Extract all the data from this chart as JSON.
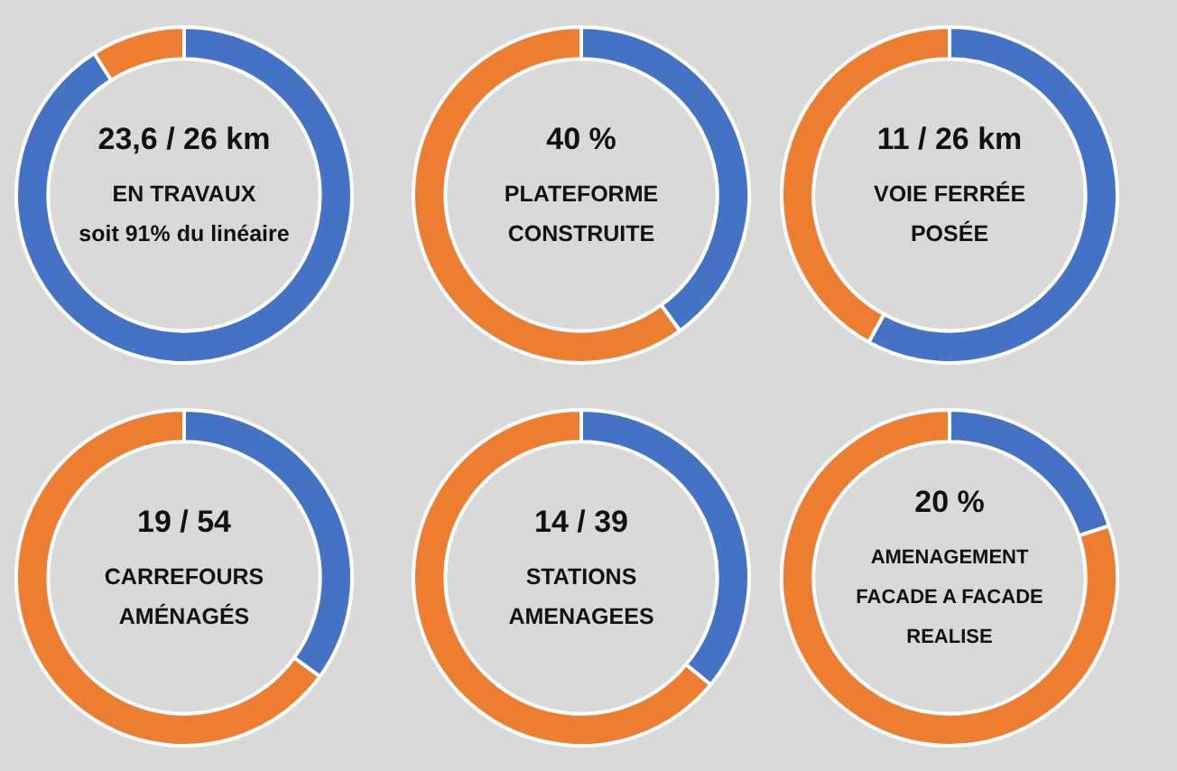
{
  "chart_data": [
    {
      "type": "donut",
      "categories": [
        null,
        null
      ],
      "values": [
        91,
        9
      ],
      "colors": [
        "#4472c4",
        "#ed7d31"
      ],
      "annotations": [
        "23,6 / 26 km",
        "EN TRAVAUX",
        "soit 91% du linéaire"
      ]
    },
    {
      "type": "donut",
      "categories": [
        null,
        null
      ],
      "values": [
        40,
        60
      ],
      "colors": [
        "#4472c4",
        "#ed7d31"
      ],
      "annotations": [
        "40 %",
        "PLATEFORME",
        "CONSTRUITE"
      ]
    },
    {
      "type": "donut",
      "categories": [
        null,
        null
      ],
      "values": [
        58,
        42
      ],
      "colors": [
        "#4472c4",
        "#ed7d31"
      ],
      "annotations": [
        "11 / 26 km",
        "VOIE FERRÉE",
        "POSÉE"
      ]
    },
    {
      "type": "donut",
      "categories": [
        null,
        null
      ],
      "values": [
        35,
        65
      ],
      "colors": [
        "#4472c4",
        "#ed7d31"
      ],
      "annotations": [
        "19 / 54",
        "CARREFOURS",
        "AMÉNAGÉS"
      ]
    },
    {
      "type": "donut",
      "categories": [
        null,
        null
      ],
      "values": [
        36,
        64
      ],
      "colors": [
        "#4472c4",
        "#ed7d31"
      ],
      "annotations": [
        "14 / 39",
        "STATIONS",
        "AMENAGEES"
      ]
    },
    {
      "type": "donut",
      "categories": [
        null,
        null
      ],
      "values": [
        20,
        80
      ],
      "colors": [
        "#4472c4",
        "#ed7d31"
      ],
      "annotations": [
        "20 %",
        "AMENAGEMENT",
        "FACADE A FACADE",
        "REALISE"
      ]
    }
  ]
}
